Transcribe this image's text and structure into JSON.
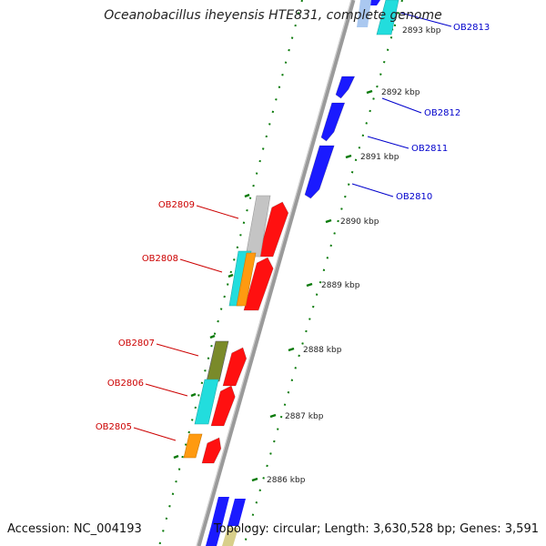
{
  "title": "Oceanobacillus iheyensis HTE831, complete genome",
  "footer": {
    "accession": "Accession: NC_004193",
    "topology": "Topology: circular; Length: 3,630,528 bp; Genes: 3,591"
  },
  "scale": {
    "unit": "kbp",
    "ticks": [
      {
        "value": 2886,
        "label": "2886 kbp"
      },
      {
        "value": 2887,
        "label": "2887 kbp"
      },
      {
        "value": 2888,
        "label": "2888 kbp"
      },
      {
        "value": 2889,
        "label": "2889 kbp"
      },
      {
        "value": 2890,
        "label": "2890 kbp"
      },
      {
        "value": 2891,
        "label": "2891 kbp"
      },
      {
        "value": 2892,
        "label": "2892 kbp"
      },
      {
        "value": 2893,
        "label": "2893 kbp"
      }
    ]
  },
  "colors": {
    "backbone": "#8a8a8a",
    "forward_label": "#0000cc",
    "reverse_label": "#cc0000",
    "tick": "#0a7a0a",
    "red": "#ff1010",
    "blue": "#1a1aff",
    "cyan": "#22dddd",
    "orange": "#ff9a10",
    "olive": "#7a8a2a",
    "silver": "#c4c4c4",
    "tan": "#d8cf8a"
  },
  "genes": [
    {
      "name": "OB2813",
      "strand": "forward",
      "color": "blue"
    },
    {
      "name": "OB2812",
      "strand": "forward",
      "color": "blue"
    },
    {
      "name": "OB2811",
      "strand": "forward",
      "color": "blue"
    },
    {
      "name": "OB2810",
      "strand": "forward",
      "color": "blue"
    },
    {
      "name": "OB2809",
      "strand": "reverse",
      "color": "red"
    },
    {
      "name": "OB2808",
      "strand": "reverse",
      "color": "red"
    },
    {
      "name": "OB2807",
      "strand": "reverse",
      "color": "red"
    },
    {
      "name": "OB2806",
      "strand": "reverse",
      "color": "red"
    },
    {
      "name": "OB2805",
      "strand": "reverse",
      "color": "red"
    }
  ]
}
